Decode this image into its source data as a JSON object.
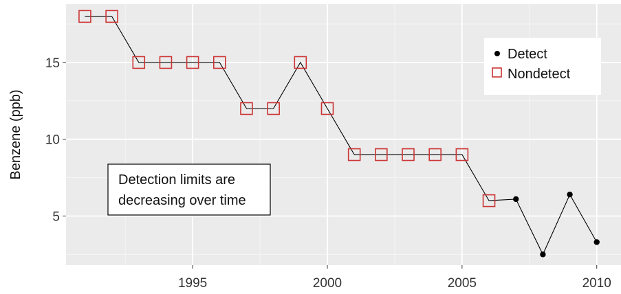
{
  "chart_data": {
    "type": "scatter",
    "title": "",
    "xlabel": "",
    "ylabel": "Benzene (ppb)",
    "xlim": [
      1990.3,
      2010.9
    ],
    "ylim": [
      1.8,
      18.8
    ],
    "xticks": [
      1995,
      2000,
      2005,
      2010
    ],
    "xtick_labels": [
      "1995",
      "2000",
      "2005",
      "2010"
    ],
    "yticks": [
      5,
      10,
      15
    ],
    "ytick_labels": [
      "5",
      "10",
      "15"
    ],
    "grid": true,
    "legend": {
      "position": "top-right",
      "entries": [
        {
          "label": "Detect",
          "marker": "filled-circle",
          "color": "#000000"
        },
        {
          "label": "Nondetect",
          "marker": "open-square",
          "color": "#cc3333"
        }
      ]
    },
    "annotation": {
      "lines": [
        "Detection limits are",
        "decreasing over time"
      ],
      "anchor": [
        1993.2,
        6.4
      ]
    },
    "line_color": "#000000",
    "points": [
      {
        "x": 1991,
        "y": 18,
        "status": "Nondetect"
      },
      {
        "x": 1992,
        "y": 18,
        "status": "Nondetect"
      },
      {
        "x": 1993,
        "y": 15,
        "status": "Nondetect"
      },
      {
        "x": 1994,
        "y": 15,
        "status": "Nondetect"
      },
      {
        "x": 1995,
        "y": 15,
        "status": "Nondetect"
      },
      {
        "x": 1996,
        "y": 15,
        "status": "Nondetect"
      },
      {
        "x": 1997,
        "y": 12,
        "status": "Nondetect"
      },
      {
        "x": 1998,
        "y": 12,
        "status": "Nondetect"
      },
      {
        "x": 1999,
        "y": 15,
        "status": "Nondetect"
      },
      {
        "x": 2000,
        "y": 12,
        "status": "Nondetect"
      },
      {
        "x": 2001,
        "y": 9,
        "status": "Nondetect"
      },
      {
        "x": 2002,
        "y": 9,
        "status": "Nondetect"
      },
      {
        "x": 2003,
        "y": 9,
        "status": "Nondetect"
      },
      {
        "x": 2004,
        "y": 9,
        "status": "Nondetect"
      },
      {
        "x": 2005,
        "y": 9,
        "status": "Nondetect"
      },
      {
        "x": 2006,
        "y": 6,
        "status": "Nondetect"
      },
      {
        "x": 2007,
        "y": 6.1,
        "status": "Detect"
      },
      {
        "x": 2008,
        "y": 2.5,
        "status": "Detect"
      },
      {
        "x": 2009,
        "y": 6.4,
        "status": "Detect"
      },
      {
        "x": 2010,
        "y": 3.3,
        "status": "Detect"
      }
    ]
  }
}
